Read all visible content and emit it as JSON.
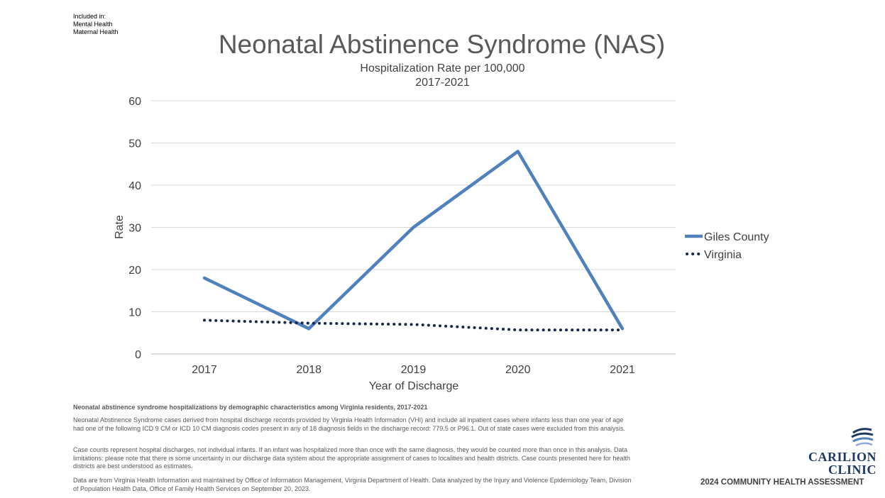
{
  "included": {
    "heading": "Included in:",
    "items": [
      "Mental Health",
      "Maternal Health"
    ]
  },
  "chart_data": {
    "type": "line",
    "title": "Neonatal Abstinence Syndrome (NAS)",
    "subtitle": [
      "Hospitalization Rate per 100,000",
      "2017-2021"
    ],
    "xlabel": "Year of Discharge",
    "ylabel": "Rate",
    "categories": [
      "2017",
      "2018",
      "2019",
      "2020",
      "2021"
    ],
    "ylim": [
      0,
      60
    ],
    "yticks": [
      0,
      10,
      20,
      30,
      40,
      50,
      60
    ],
    "grid": true,
    "legend_position": "right",
    "series": [
      {
        "name": "Giles County",
        "values": [
          18,
          6,
          30,
          48,
          6
        ],
        "color": "#4f81bd",
        "style": "solid"
      },
      {
        "name": "Virginia",
        "values": [
          8,
          7.3,
          7,
          5.7,
          5.7
        ],
        "color": "#172a4d",
        "style": "dotted"
      }
    ]
  },
  "footnotes": {
    "heading": "Neonatal abstinence syndrome hospitalizations by demographic characteristics among Virginia residents, 2017-2021",
    "para1": "Neonatal Abstinence Syndrome cases derived from hospital discharge records provided by Virginia Health Information (VHI) and include all inpatient cases where infants less than one year of age had one of the following ICD 9 CM or ICD 10 CM diagnosis codes present in any of 18 diagnosis fields in the discharge record: 779.5 or P96.1.  Out of state cases were excluded from this analysis.",
    "para2": "Case counts represent hospital discharges, not individual infants. If an infant was hospitalized more than once with the same diagnosis, they would be counted more than once in this analysis.  Data limitations: please note that there is some uncertainty in our discharge data system about the appropriate assignment of cases to localities and health districts. Case counts presented here for health districts are best understood as estimates.",
    "para3": "Data are from Virginia Health Information and maintained by Office of Information Management, Virginia Department of Health. Data analyzed by the Injury and Violence Epidemiology Team, Division of Population Health Data, Office of Family Health Services on September 20, 2023."
  },
  "branding": {
    "logo_line1": "CARILION",
    "logo_line2": "CLINIC",
    "assessment": "2024 COMMUNITY HEALTH ASSESSMENT"
  }
}
